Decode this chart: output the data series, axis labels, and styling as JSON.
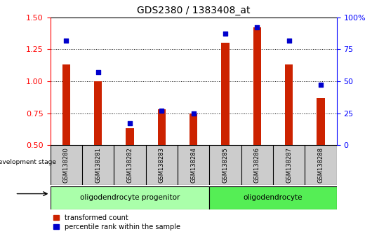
{
  "title": "GDS2380 / 1383408_at",
  "samples": [
    "GSM138280",
    "GSM138281",
    "GSM138282",
    "GSM138283",
    "GSM138284",
    "GSM138285",
    "GSM138286",
    "GSM138287",
    "GSM138288"
  ],
  "transformed_count": [
    1.13,
    1.0,
    0.63,
    0.78,
    0.75,
    1.3,
    1.42,
    1.13,
    0.87
  ],
  "percentile_rank": [
    82,
    57,
    17,
    27,
    25,
    87,
    92,
    82,
    47
  ],
  "ylim_left": [
    0.5,
    1.5
  ],
  "ylim_right": [
    0,
    100
  ],
  "yticks_left": [
    0.5,
    0.75,
    1.0,
    1.25,
    1.5
  ],
  "yticks_right": [
    0,
    25,
    50,
    75,
    100
  ],
  "bar_color": "#cc2200",
  "dot_color": "#0000cc",
  "grid_color": "#000000",
  "group1_label": "oligodendrocyte progenitor",
  "group2_label": "oligodendrocyte",
  "group1_indices": [
    0,
    1,
    2,
    3,
    4
  ],
  "group2_indices": [
    5,
    6,
    7,
    8
  ],
  "group1_color": "#aaffaa",
  "group2_color": "#55ee55",
  "dev_stage_label": "development stage",
  "legend_bar_label": "transformed count",
  "legend_dot_label": "percentile rank within the sample",
  "tick_area_color": "#cccccc",
  "bar_width": 0.25,
  "dot_size": 18
}
